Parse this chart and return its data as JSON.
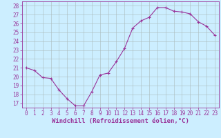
{
  "x": [
    0,
    1,
    2,
    3,
    4,
    5,
    6,
    7,
    8,
    9,
    10,
    11,
    12,
    13,
    14,
    15,
    16,
    17,
    18,
    19,
    20,
    21,
    22,
    23
  ],
  "y": [
    21.0,
    20.7,
    19.9,
    19.8,
    18.5,
    17.5,
    16.7,
    16.7,
    18.3,
    20.2,
    20.4,
    21.7,
    23.2,
    25.5,
    26.3,
    26.7,
    27.8,
    27.8,
    27.4,
    27.3,
    27.1,
    26.2,
    25.7,
    24.7
  ],
  "line_color": "#993399",
  "marker": "+",
  "marker_size": 3,
  "marker_lw": 0.8,
  "line_width": 0.8,
  "bg_color": "#cceeff",
  "grid_color": "#aabbbb",
  "xlabel": "Windchill (Refroidissement éolien,°C)",
  "ylim": [
    16.5,
    28.5
  ],
  "xlim": [
    -0.5,
    23.5
  ],
  "yticks": [
    17,
    18,
    19,
    20,
    21,
    22,
    23,
    24,
    25,
    26,
    27,
    28
  ],
  "xticks": [
    0,
    1,
    2,
    3,
    4,
    5,
    6,
    7,
    8,
    9,
    10,
    11,
    12,
    13,
    14,
    15,
    16,
    17,
    18,
    19,
    20,
    21,
    22,
    23
  ],
  "tick_label_color": "#993399",
  "axis_color": "#993399",
  "xlabel_color": "#993399",
  "tick_fontsize": 5.5,
  "xlabel_fontsize": 6.5
}
